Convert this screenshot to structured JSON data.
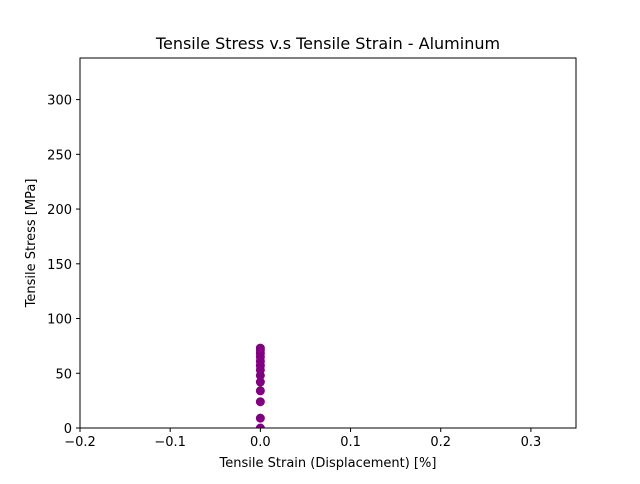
{
  "chart_data": {
    "type": "scatter",
    "title": "Tensile Stress v.s Tensile Strain - Aluminum",
    "xlabel": "Tensile Strain (Displacement) [%]",
    "ylabel": "Tensile Stress [MPa]",
    "xlim": [
      -0.2,
      0.35
    ],
    "ylim": [
      0,
      338
    ],
    "xticks": [
      -0.2,
      -0.1,
      0.0,
      0.1,
      0.2,
      0.3
    ],
    "xtick_labels": [
      "−0.2",
      "−0.1",
      "0.0",
      "0.1",
      "0.2",
      "0.3"
    ],
    "yticks": [
      0,
      50,
      100,
      150,
      200,
      250,
      300
    ],
    "ytick_labels": [
      "0",
      "50",
      "100",
      "150",
      "200",
      "250",
      "300"
    ],
    "grid": false,
    "legend": "none",
    "series": [
      {
        "color": "#800080",
        "points": [
          {
            "x": 0.0,
            "y": 0
          },
          {
            "x": 0.0,
            "y": 9
          },
          {
            "x": 0.0,
            "y": 24
          },
          {
            "x": 0.0,
            "y": 34
          },
          {
            "x": 0.0,
            "y": 42
          },
          {
            "x": 0.0,
            "y": 48
          },
          {
            "x": 0.0,
            "y": 53
          },
          {
            "x": 0.0,
            "y": 57
          },
          {
            "x": 0.0,
            "y": 61
          },
          {
            "x": 0.0,
            "y": 65
          },
          {
            "x": 0.0,
            "y": 68
          },
          {
            "x": 0.0,
            "y": 71
          },
          {
            "x": 0.0,
            "y": 73
          }
        ]
      }
    ]
  }
}
